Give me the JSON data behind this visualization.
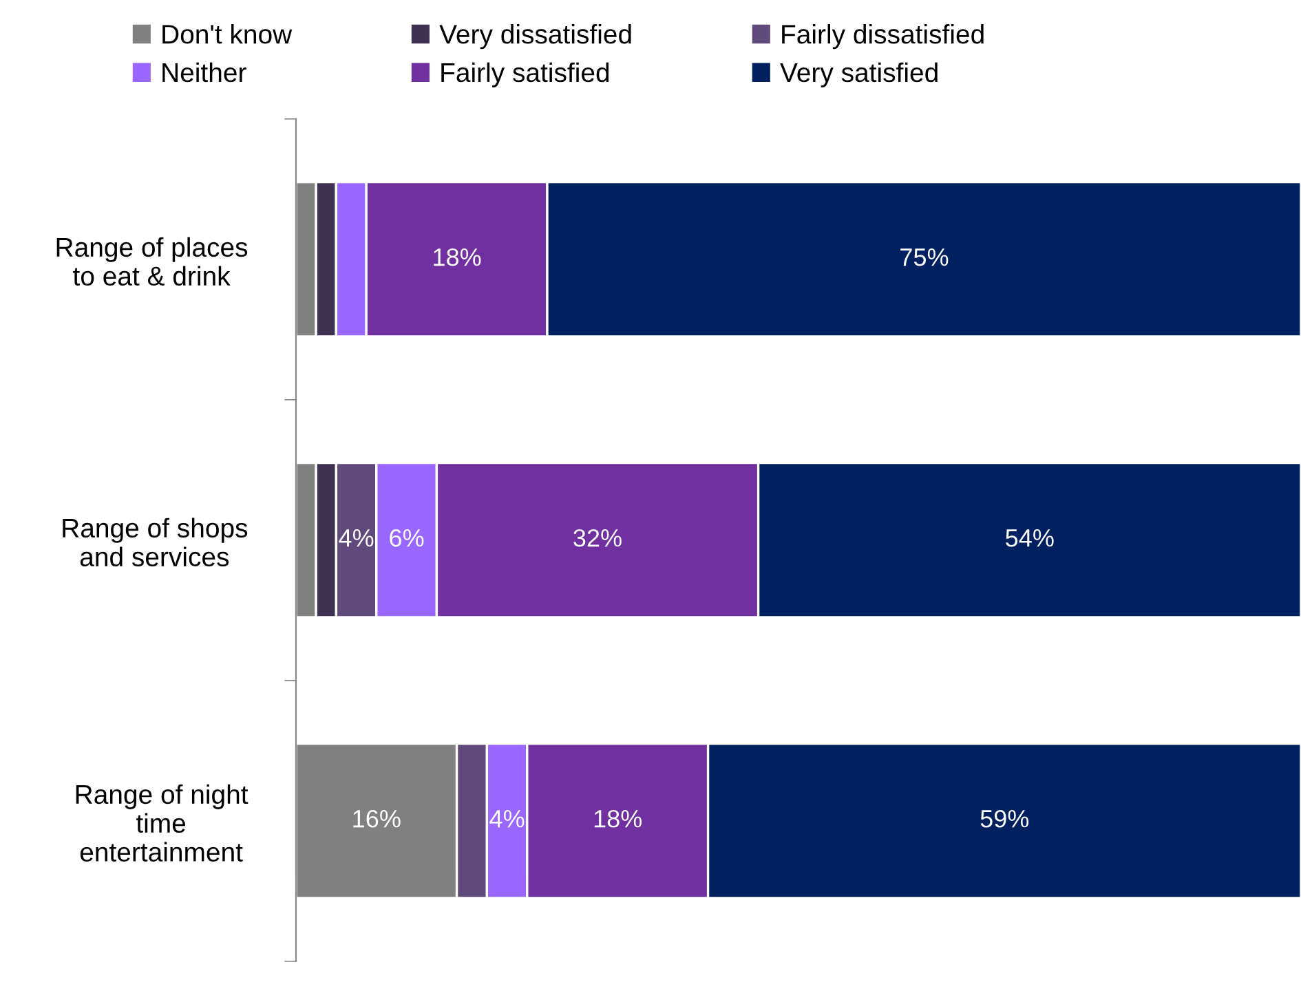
{
  "chart_data": {
    "type": "bar",
    "orientation": "horizontal",
    "stacked": true,
    "legend": "top",
    "grid": false,
    "tick_labels": "y",
    "categories": [
      "Range of places\nto eat & drink",
      "Range of shops\nand services",
      "Range of night\ntime\nentertainment"
    ],
    "series": [
      {
        "name": "Don't know",
        "color": "#808080",
        "values": [
          2,
          2,
          16
        ],
        "value_labels": [
          null,
          null,
          "16%"
        ]
      },
      {
        "name": "Very dissatisfied",
        "color": "#3f3151",
        "values": [
          2,
          2,
          0
        ],
        "value_labels": [
          null,
          null,
          null
        ]
      },
      {
        "name": "Fairly dissatisfied",
        "color": "#604a7b",
        "values": [
          0,
          4,
          3
        ],
        "value_labels": [
          null,
          "4%",
          null
        ]
      },
      {
        "name": "Neither",
        "color": "#9966ff",
        "values": [
          3,
          6,
          4
        ],
        "value_labels": [
          null,
          "6%",
          "4%"
        ]
      },
      {
        "name": "Fairly satisfied",
        "color": "#7030a0",
        "values": [
          18,
          32,
          18
        ],
        "value_labels": [
          "18%",
          "32%",
          "18%"
        ]
      },
      {
        "name": "Very satisfied",
        "color": "#002060",
        "values": [
          75,
          54,
          59
        ],
        "value_labels": [
          "75%",
          "54%",
          "59%"
        ]
      }
    ]
  }
}
